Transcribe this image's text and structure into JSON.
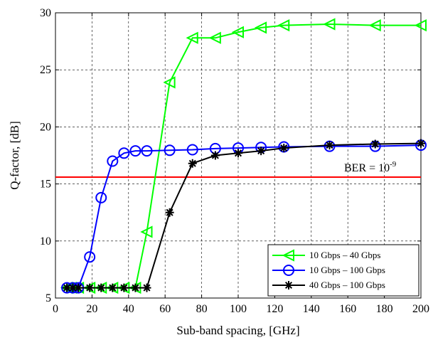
{
  "chart_data": {
    "type": "line",
    "xlabel": "Sub-band spacing, [GHz]",
    "ylabel": "Q-factor, [dB]",
    "xlim": [
      0,
      200
    ],
    "ylim": [
      5,
      30
    ],
    "xticks": [
      0,
      20,
      40,
      60,
      80,
      100,
      120,
      140,
      160,
      180,
      200
    ],
    "yticks": [
      5,
      10,
      15,
      20,
      25,
      30
    ],
    "grid": "dashed",
    "legend_position": "bottom-right",
    "threshold": {
      "value": 15.6,
      "color": "#ff0000",
      "label_main": "BER = 10",
      "label_exp": "-9"
    },
    "series": [
      {
        "name": "10 Gbps – 40 Gbps",
        "color": "#00ff00",
        "marker": "triangle-left",
        "x": [
          6.25,
          8.5,
          12.5,
          18.75,
          25,
          31.25,
          37.5,
          43.75,
          50,
          62.5,
          75,
          87.5,
          100,
          112.5,
          125,
          150,
          175,
          200
        ],
        "y": [
          5.9,
          5.9,
          5.9,
          5.9,
          5.9,
          5.9,
          5.9,
          5.9,
          10.8,
          23.9,
          27.8,
          27.8,
          28.3,
          28.7,
          28.9,
          29.0,
          28.9,
          28.9
        ]
      },
      {
        "name": "10 Gbps – 100 Gbps",
        "color": "#0000ff",
        "marker": "circle",
        "x": [
          6.25,
          9.5,
          12.5,
          18.75,
          25,
          31.25,
          37.5,
          43.75,
          50,
          62.5,
          75,
          87.5,
          100,
          112.5,
          125,
          150,
          175,
          200
        ],
        "y": [
          5.9,
          5.9,
          5.9,
          8.6,
          13.8,
          17.0,
          17.7,
          17.9,
          17.9,
          17.95,
          18.0,
          18.1,
          18.15,
          18.2,
          18.25,
          18.3,
          18.3,
          18.4
        ]
      },
      {
        "name": "40 Gbps – 100 Gbps",
        "color": "#000000",
        "marker": "asterisk",
        "x": [
          6.25,
          9.5,
          12.5,
          18.75,
          25,
          31.25,
          37.5,
          43.75,
          50,
          62.5,
          75,
          87.5,
          100,
          112.5,
          125,
          150,
          175,
          200
        ],
        "y": [
          5.9,
          5.9,
          5.9,
          5.9,
          5.9,
          5.9,
          5.9,
          5.9,
          5.9,
          12.5,
          16.8,
          17.5,
          17.7,
          17.9,
          18.15,
          18.4,
          18.5,
          18.55
        ]
      }
    ]
  }
}
